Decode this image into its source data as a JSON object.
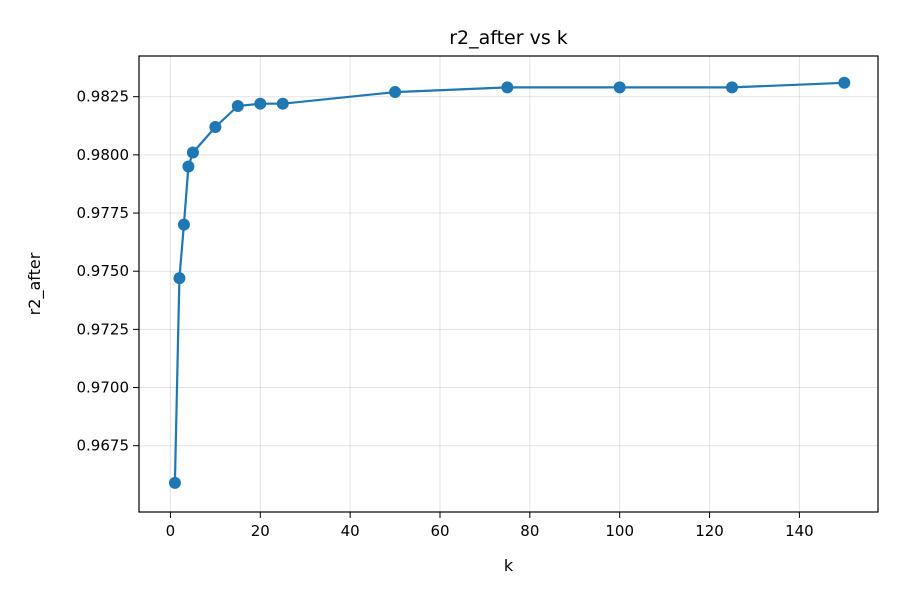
{
  "chart_data": {
    "type": "line",
    "title": "r2_after vs k",
    "xlabel": "k",
    "ylabel": "r2_after",
    "xlim": [
      -7,
      157.5
    ],
    "ylim": [
      0.96465,
      0.98425
    ],
    "xticks": [
      0,
      20,
      40,
      60,
      80,
      100,
      120,
      140
    ],
    "yticks": [
      0.9675,
      0.97,
      0.9725,
      0.975,
      0.9775,
      0.98,
      0.9825
    ],
    "ytick_labels": [
      "0.9675",
      "0.9700",
      "0.9725",
      "0.9750",
      "0.9775",
      "0.9800",
      "0.9825"
    ],
    "grid": true,
    "color": "#1f77b4",
    "markers": true,
    "series": [
      {
        "x": [
          1,
          2,
          3,
          4,
          5,
          10,
          15,
          20,
          25,
          50,
          75,
          100,
          125,
          150
        ],
        "values": [
          0.9659,
          0.9747,
          0.977,
          0.9795,
          0.9801,
          0.9812,
          0.9821,
          0.9822,
          0.9822,
          0.9827,
          0.9829,
          0.9829,
          0.9829,
          0.9831
        ]
      }
    ]
  }
}
